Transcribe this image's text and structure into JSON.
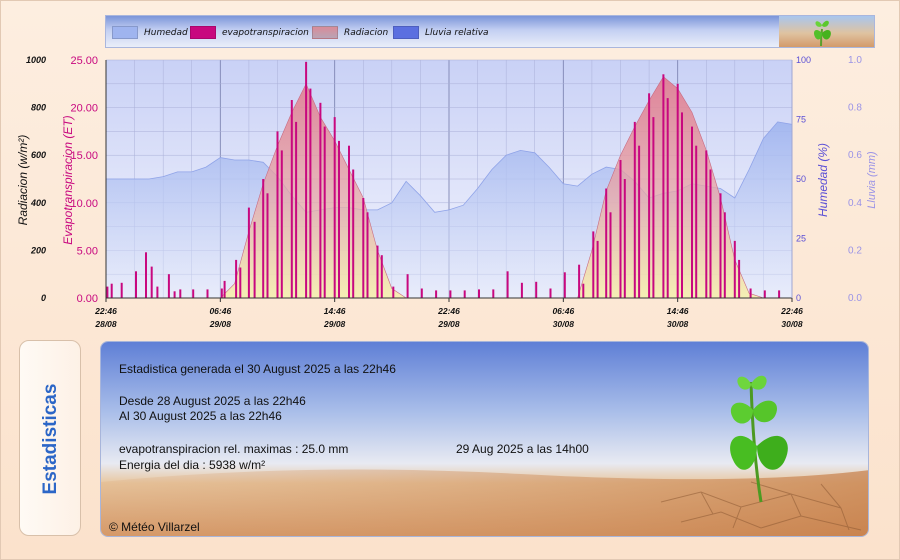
{
  "legend": {
    "items": [
      {
        "label": "Humedad",
        "color": "#9fb4ef"
      },
      {
        "label": "evapotranspiracion",
        "color": "#c8087f"
      },
      {
        "label": "Radiacion",
        "color": "#d98c99"
      },
      {
        "label": "Lluvia relativa",
        "color": "#5b6fe0"
      }
    ]
  },
  "stats": {
    "tab_label": "Estadisticas",
    "generated": "Estadistica generada el 30 August 2025 a las 22h46",
    "from": "Desde 28 August 2025 a las 22h46",
    "to": "Al 30 August 2025 a las 22h46",
    "max_et_label": "evapotranspiracion rel. maximas : 25.0 mm",
    "max_et_date": "29 Aug 2025 a las 14h00",
    "energy": "Energia del dia : 5938 w/m²",
    "copyright": "© Météo Villarzel"
  },
  "colors": {
    "plot_bg_top": "#ccd4f6",
    "plot_bg_bottom": "#f3f4fd",
    "humidity_fill": "#9fb4ef",
    "radiation_fill": "#d98c99",
    "et_bar": "#c8087f",
    "left_axis_text": "#111111",
    "et_axis_text": "#c8087f",
    "humidity_axis_text": "#5a4fd6",
    "rain_axis_text": "#9a93e6"
  },
  "chart_data": {
    "type": "area",
    "x_tick_labels": [
      [
        "22:46",
        "28/08"
      ],
      [
        "06:46",
        "29/08"
      ],
      [
        "14:46",
        "29/08"
      ],
      [
        "22:46",
        "29/08"
      ],
      [
        "06:46",
        "30/08"
      ],
      [
        "14:46",
        "30/08"
      ],
      [
        "22:46",
        "30/08"
      ]
    ],
    "axes": {
      "radiation": {
        "label": "Radiacion (w/m²)",
        "range": [
          0,
          1000
        ],
        "ticks": [
          "0",
          "200",
          "400",
          "600",
          "800",
          "1000"
        ]
      },
      "et": {
        "label": "Evapotranspiracion (ET)",
        "range": [
          0,
          25
        ],
        "ticks": [
          "0.00",
          "5.00",
          "10.00",
          "15.00",
          "20.00",
          "25.00"
        ]
      },
      "humidity": {
        "label": "Humedad (%)",
        "range": [
          0,
          100
        ],
        "ticks": [
          "0",
          "25",
          "50",
          "75",
          "100"
        ]
      },
      "rain": {
        "label": "Lluvia (mm)",
        "range": [
          0,
          1
        ],
        "ticks": [
          "0.0",
          "0.2",
          "0.4",
          "0.6",
          "0.8",
          "1.0"
        ]
      }
    },
    "grid": true,
    "x_range_hours": [
      0,
      48
    ],
    "humidity": {
      "hours": [
        0,
        1,
        2,
        3,
        4,
        5,
        6,
        7,
        8,
        9,
        10,
        11,
        12,
        13,
        14,
        15,
        16,
        17,
        18,
        19,
        20,
        21,
        22,
        23,
        24,
        25,
        26,
        27,
        28,
        29,
        30,
        31,
        32,
        33,
        34,
        35,
        36,
        37,
        38,
        39,
        40,
        41,
        42,
        43,
        44,
        45,
        46,
        47,
        48
      ],
      "values": [
        50,
        50,
        50,
        50,
        51,
        53,
        53,
        55,
        59,
        58,
        58,
        57,
        51,
        43,
        36,
        37,
        38,
        38,
        37,
        37,
        40,
        49,
        43,
        36,
        37,
        39,
        46,
        54,
        60,
        62,
        61,
        55,
        48,
        47,
        52,
        55,
        54,
        49,
        42,
        44,
        45,
        48,
        47,
        46,
        42,
        54,
        67,
        74,
        73
      ]
    },
    "radiation": {
      "hours": [
        0,
        8,
        9,
        10,
        11,
        12,
        13,
        14,
        15,
        16,
        17,
        18,
        19,
        20,
        21,
        32,
        33,
        34,
        35,
        36,
        37,
        38,
        39,
        40,
        41,
        42,
        43,
        44,
        45,
        46,
        48
      ],
      "values": [
        0,
        0,
        60,
        280,
        480,
        640,
        780,
        900,
        760,
        660,
        540,
        420,
        200,
        40,
        0,
        0,
        0,
        200,
        450,
        600,
        720,
        830,
        930,
        880,
        780,
        620,
        420,
        160,
        20,
        0,
        0
      ]
    },
    "evapotranspiracion": {
      "hours": [
        0.1,
        0.4,
        1.1,
        2.1,
        2.8,
        3.2,
        3.6,
        4.4,
        4.8,
        5.2,
        6.1,
        7.1,
        8.1,
        8.3,
        9.1,
        9.4,
        10.0,
        10.4,
        11.0,
        11.3,
        12.0,
        12.3,
        13.0,
        13.3,
        14.0,
        14.3,
        15.0,
        15.3,
        16.0,
        16.3,
        17.0,
        17.3,
        18.0,
        18.3,
        19.0,
        19.3,
        20.1,
        21.1,
        22.1,
        23.1,
        24.1,
        25.1,
        26.1,
        27.1,
        28.1,
        29.1,
        30.1,
        31.1,
        32.1,
        33.1,
        33.4,
        34.1,
        34.4,
        35.0,
        35.3,
        36.0,
        36.3,
        37.0,
        37.3,
        38.0,
        38.3,
        39.0,
        39.3,
        40.0,
        40.3,
        41.0,
        41.3,
        42.0,
        42.3,
        43.0,
        43.3,
        44.0,
        44.3,
        45.1,
        46.1,
        47.1
      ],
      "values": [
        1.2,
        1.5,
        1.6,
        2.8,
        4.8,
        3.3,
        1.2,
        2.5,
        0.7,
        0.9,
        0.9,
        0.9,
        1.0,
        1.8,
        4.0,
        3.2,
        9.5,
        8.0,
        12.5,
        11.0,
        17.5,
        15.5,
        20.8,
        18.5,
        24.8,
        22.0,
        20.5,
        18.0,
        19.0,
        16.5,
        16.0,
        13.5,
        10.5,
        9.0,
        5.5,
        4.5,
        1.2,
        2.5,
        1.0,
        0.8,
        0.8,
        0.8,
        0.9,
        0.9,
        2.8,
        1.6,
        1.7,
        1.0,
        2.7,
        3.5,
        1.5,
        7.0,
        6.0,
        11.5,
        9.0,
        14.5,
        12.5,
        18.5,
        16.0,
        21.5,
        19.0,
        23.5,
        21.0,
        22.5,
        19.5,
        18.0,
        16.0,
        15.5,
        13.5,
        11.0,
        9.0,
        6.0,
        4.0,
        1.0,
        0.8,
        0.8
      ]
    }
  }
}
